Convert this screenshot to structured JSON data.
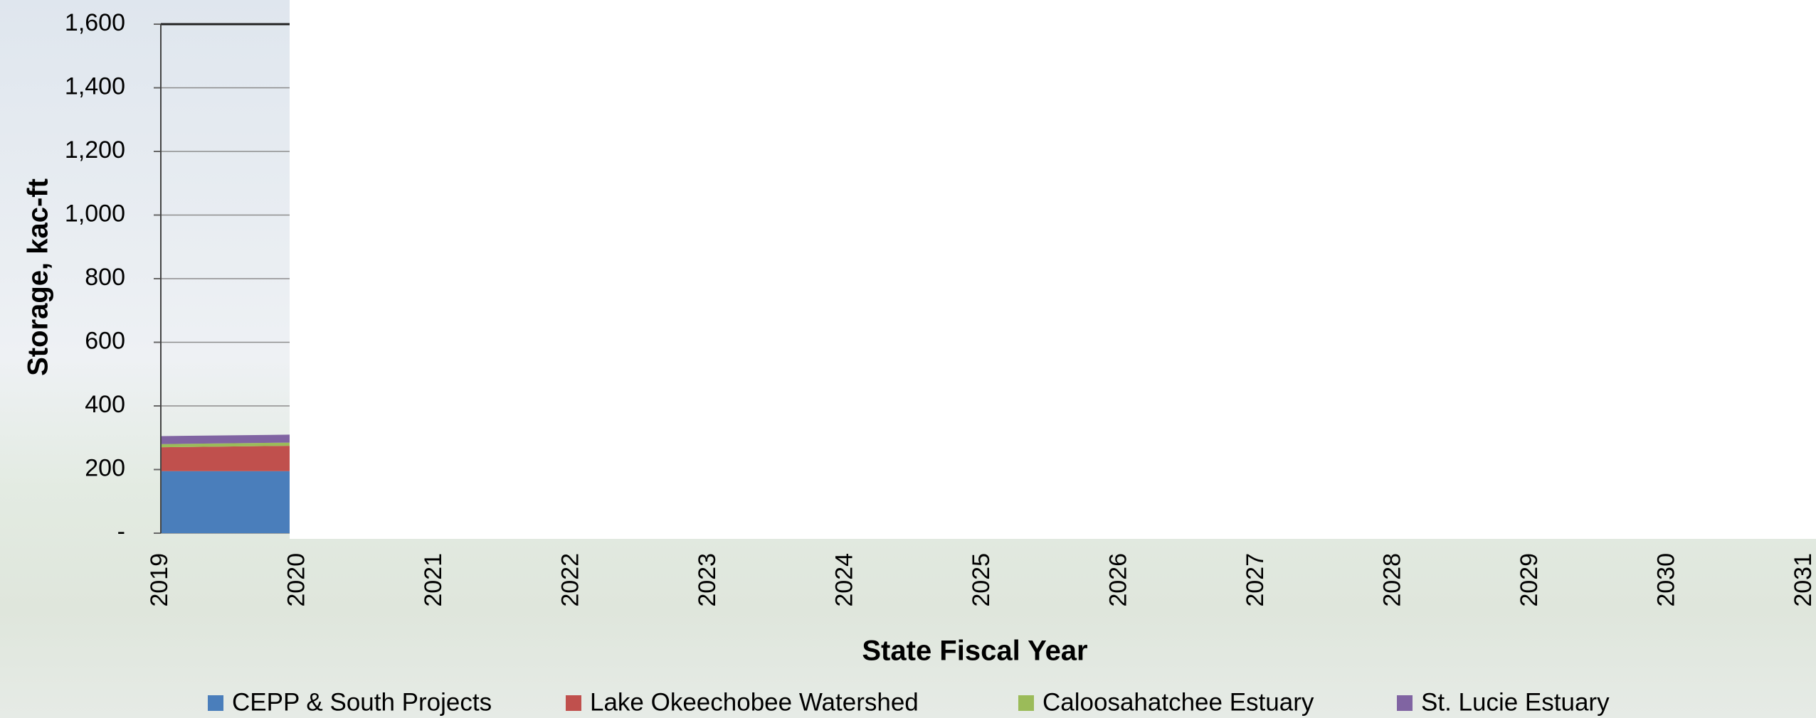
{
  "chart_data": {
    "type": "stacked-area",
    "x_label": "State Fiscal Year",
    "y_label": "Storage, kac-ft",
    "x": [
      2019,
      2020,
      2021,
      2022,
      2023,
      2024,
      2025,
      2026,
      2027,
      2028,
      2029,
      2030,
      2031
    ],
    "xlim": [
      2019,
      2031
    ],
    "xticks": [
      2019,
      2020,
      2021,
      2022,
      2023,
      2024,
      2025,
      2026,
      2027,
      2028,
      2029,
      2030,
      2031
    ],
    "ylim": [
      0,
      1600
    ],
    "yticks": [
      {
        "value": 0,
        "label": "-"
      },
      200,
      400,
      600,
      800,
      {
        "value": 1000,
        "label": "1,000"
      },
      {
        "value": 1200,
        "label": "1,200"
      },
      {
        "value": 1400,
        "label": "1,400"
      },
      {
        "value": 1600,
        "label": "1,600"
      }
    ],
    "grid": true,
    "legend": "bottom",
    "series": [
      {
        "name": "CEPP & South Projects",
        "color": "#4a7ebb",
        "values": [
          195,
          195,
          null,
          null,
          null,
          null,
          null,
          null,
          null,
          null,
          null,
          null,
          null
        ]
      },
      {
        "name": "Lake Okeechobee Watershed",
        "color": "#c0504d",
        "values": [
          75,
          80,
          null,
          null,
          null,
          null,
          null,
          null,
          null,
          null,
          null,
          null,
          null
        ]
      },
      {
        "name": "Caloosahatchee Estuary",
        "color": "#9bbb59",
        "values": [
          10,
          10,
          null,
          null,
          null,
          null,
          null,
          null,
          null,
          null,
          null,
          null,
          null
        ]
      },
      {
        "name": "St. Lucie Estuary",
        "color": "#8064a2",
        "values": [
          25,
          25,
          null,
          null,
          null,
          null,
          null,
          null,
          null,
          null,
          null,
          null,
          null
        ]
      }
    ]
  }
}
